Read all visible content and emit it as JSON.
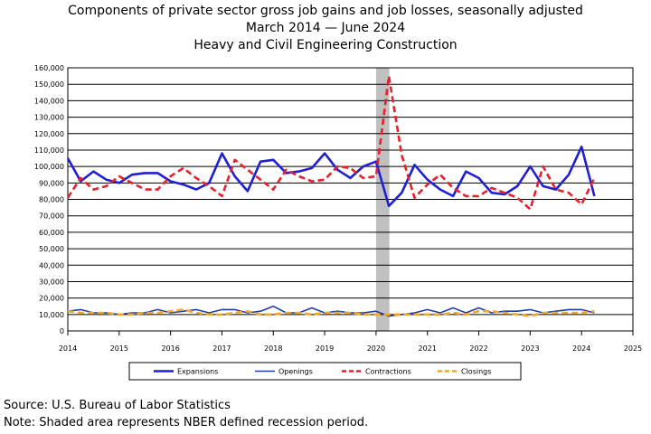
{
  "chart_data": {
    "type": "line",
    "title": "Components of private sector gross job gains and job losses, seasonally adjusted",
    "subtitle_1": "March 2014 — June 2024",
    "subtitle_2": "Heavy and Civil Engineering Construction",
    "xlabel": "",
    "ylabel": "",
    "xlim": [
      2014,
      2025
    ],
    "ylim": [
      0,
      160000
    ],
    "x_ticks": [
      "2014",
      "2015",
      "2016",
      "2017",
      "2018",
      "2019",
      "2020",
      "2021",
      "2022",
      "2023",
      "2024",
      "2025"
    ],
    "y_ticks": [
      "0",
      "10,000",
      "20,000",
      "30,000",
      "40,000",
      "50,000",
      "60,000",
      "70,000",
      "80,000",
      "90,000",
      "100,000",
      "110,000",
      "120,000",
      "130,000",
      "140,000",
      "150,000",
      "160,000"
    ],
    "grid": "horizontal",
    "legend_position": "bottom",
    "recession_shading": {
      "start": "2020-Q1",
      "end": "2020-Q2"
    },
    "x": [
      "2014-Q1",
      "2014-Q2",
      "2014-Q3",
      "2014-Q4",
      "2015-Q1",
      "2015-Q2",
      "2015-Q3",
      "2015-Q4",
      "2016-Q1",
      "2016-Q2",
      "2016-Q3",
      "2016-Q4",
      "2017-Q1",
      "2017-Q2",
      "2017-Q3",
      "2017-Q4",
      "2018-Q1",
      "2018-Q2",
      "2018-Q3",
      "2018-Q4",
      "2019-Q1",
      "2019-Q2",
      "2019-Q3",
      "2019-Q4",
      "2020-Q1",
      "2020-Q2",
      "2020-Q3",
      "2020-Q4",
      "2021-Q1",
      "2021-Q2",
      "2021-Q3",
      "2021-Q4",
      "2022-Q1",
      "2022-Q2",
      "2022-Q3",
      "2022-Q4",
      "2023-Q1",
      "2023-Q2",
      "2023-Q3",
      "2023-Q4",
      "2024-Q1",
      "2024-Q2"
    ],
    "series": [
      {
        "name": "Expansions",
        "color": "#1f1fd6",
        "style": "solid",
        "width": "thick",
        "values": [
          105000,
          91000,
          97000,
          92000,
          90000,
          95000,
          96000,
          96000,
          91000,
          89000,
          86000,
          90000,
          108000,
          94000,
          85000,
          103000,
          104000,
          96000,
          97000,
          99000,
          108000,
          98000,
          93000,
          100000,
          103000,
          76000,
          84000,
          101000,
          92000,
          86000,
          82000,
          97000,
          93000,
          84000,
          83000,
          88000,
          100000,
          88000,
          86000,
          95000,
          112000,
          82000
        ]
      },
      {
        "name": "Openings",
        "color": "#1f3fa8",
        "style": "solid",
        "width": "thin",
        "values": [
          12000,
          13000,
          11000,
          11000,
          10000,
          11000,
          11000,
          13000,
          11000,
          12000,
          13000,
          11000,
          13000,
          13000,
          11000,
          12000,
          15000,
          11000,
          11000,
          14000,
          11000,
          12000,
          11000,
          11000,
          12000,
          9000,
          10000,
          11000,
          13000,
          11000,
          14000,
          11000,
          14000,
          11000,
          12000,
          12000,
          13000,
          11000,
          12000,
          13000,
          13000,
          11000
        ]
      },
      {
        "name": "Contractions",
        "color": "#e8202a",
        "style": "dashed",
        "width": "thick",
        "values": [
          81000,
          93000,
          86000,
          88000,
          94000,
          90000,
          86000,
          86000,
          94000,
          99000,
          93000,
          88000,
          82000,
          104000,
          98000,
          92000,
          86000,
          98000,
          94000,
          91000,
          92000,
          100000,
          99000,
          93000,
          94000,
          155000,
          107000,
          81000,
          89000,
          95000,
          87000,
          82000,
          82000,
          87000,
          84000,
          81000,
          74000,
          100000,
          86000,
          84000,
          77000,
          93000
        ]
      },
      {
        "name": "Closings",
        "color": "#f5a623",
        "style": "dashed",
        "width": "thick",
        "values": [
          12000,
          11000,
          11000,
          11000,
          10000,
          10000,
          11000,
          11000,
          12000,
          13000,
          11000,
          10000,
          10000,
          11000,
          12000,
          10000,
          10000,
          11000,
          11000,
          10000,
          11000,
          11000,
          11000,
          10000,
          10000,
          10000,
          10000,
          10000,
          10000,
          10000,
          11000,
          10000,
          12000,
          12000,
          11000,
          10000,
          9000,
          11000,
          11000,
          11000,
          11000,
          12000
        ]
      }
    ]
  },
  "footer": {
    "source": "Source: U.S. Bureau of Labor Statistics",
    "note": "Note: Shaded area represents NBER defined recession period."
  }
}
